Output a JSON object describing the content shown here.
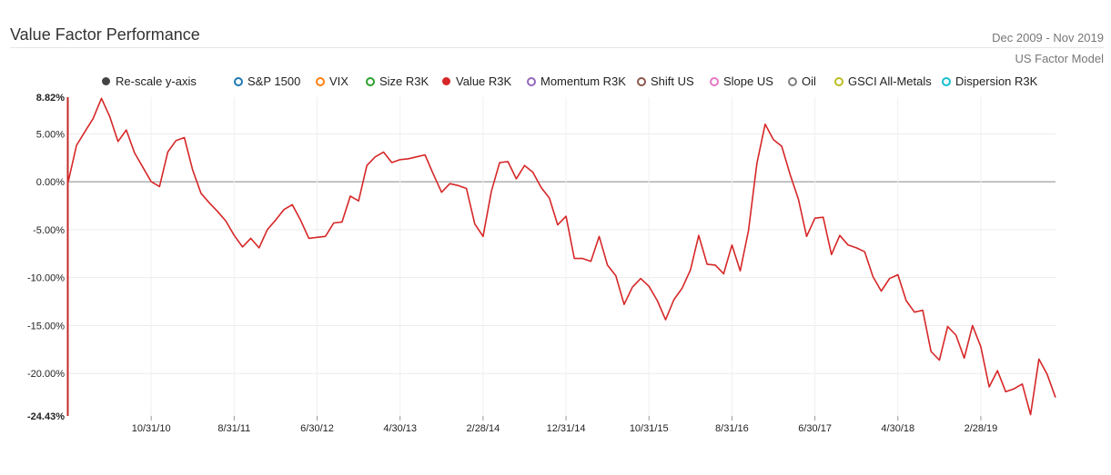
{
  "header": {
    "title": "Value Factor Performance",
    "date_range": "Dec 2009 - Nov 2019",
    "model": "US Factor Model"
  },
  "legend": {
    "rescale_label": "Re-scale y-axis",
    "items": [
      {
        "label": "S&P 1500",
        "color": "#1f77b4"
      },
      {
        "label": "VIX",
        "color": "#ff7f0e"
      },
      {
        "label": "Size R3K",
        "color": "#2ca02c"
      },
      {
        "label": "Value R3K",
        "color": "#d62728",
        "active": true
      },
      {
        "label": "Momentum R3K",
        "color": "#9467bd"
      },
      {
        "label": "Shift US",
        "color": "#8c564b"
      },
      {
        "label": "Slope US",
        "color": "#e377c2"
      },
      {
        "label": "Oil",
        "color": "#7f7f7f"
      },
      {
        "label": "GSCI All-Metals",
        "color": "#bcbd22"
      },
      {
        "label": "Dispersion R3K",
        "color": "#17becf"
      }
    ]
  },
  "chart_data": {
    "type": "line",
    "ylim": [
      -24.43,
      8.82
    ],
    "y_ticks": [
      "8.82%",
      "5.00%",
      "0.00%",
      "-5.00%",
      "-10.00%",
      "-15.00%",
      "-20.00%",
      "-24.43%"
    ],
    "x_ticks": [
      "10/31/10",
      "8/31/11",
      "6/30/12",
      "4/30/13",
      "2/28/14",
      "12/31/14",
      "10/31/15",
      "8/31/16",
      "6/30/17",
      "4/30/18",
      "2/28/19"
    ],
    "series": [
      {
        "name": "Value R3K",
        "color": "#d62728",
        "x_start": "Dec 2009",
        "x_step": "monthly",
        "values": [
          0.0,
          3.8,
          5.2,
          6.6,
          8.7,
          6.8,
          4.2,
          5.4,
          3.0,
          1.5,
          0.0,
          -0.5,
          3.1,
          4.3,
          4.6,
          1.2,
          -1.2,
          -2.2,
          -3.1,
          -4.1,
          -5.6,
          -6.8,
          -5.9,
          -6.9,
          -5.0,
          -4.0,
          -2.9,
          -2.4,
          -4.0,
          -5.9,
          -5.8,
          -5.7,
          -4.3,
          -4.2,
          -1.5,
          -2.0,
          1.7,
          2.6,
          3.1,
          2.0,
          2.3,
          2.4,
          2.6,
          2.8,
          0.8,
          -1.1,
          -0.2,
          -0.4,
          -0.7,
          -4.4,
          -5.7,
          -1.0,
          2.0,
          2.1,
          0.3,
          1.7,
          1.0,
          -0.6,
          -1.7,
          -4.5,
          -3.6,
          -8.0,
          -8.0,
          -8.3,
          -5.7,
          -8.7,
          -9.8,
          -12.8,
          -11.0,
          -10.1,
          -10.9,
          -12.4,
          -14.4,
          -12.3,
          -11.1,
          -9.2,
          -5.6,
          -8.6,
          -8.7,
          -9.6,
          -6.6,
          -9.3,
          -5.1,
          1.9,
          6.0,
          4.4,
          3.7,
          0.8,
          -1.8,
          -5.7,
          -3.8,
          -3.7,
          -7.6,
          -5.6,
          -6.6,
          -6.9,
          -7.3,
          -9.9,
          -11.4,
          -10.1,
          -9.7,
          -12.4,
          -13.6,
          -13.4,
          -17.7,
          -18.6,
          -15.1,
          -16.0,
          -18.4,
          -15.0,
          -17.2,
          -21.4,
          -19.7,
          -21.9,
          -21.6,
          -21.1,
          -24.3,
          -18.5,
          -20.1,
          -22.5
        ]
      }
    ]
  }
}
